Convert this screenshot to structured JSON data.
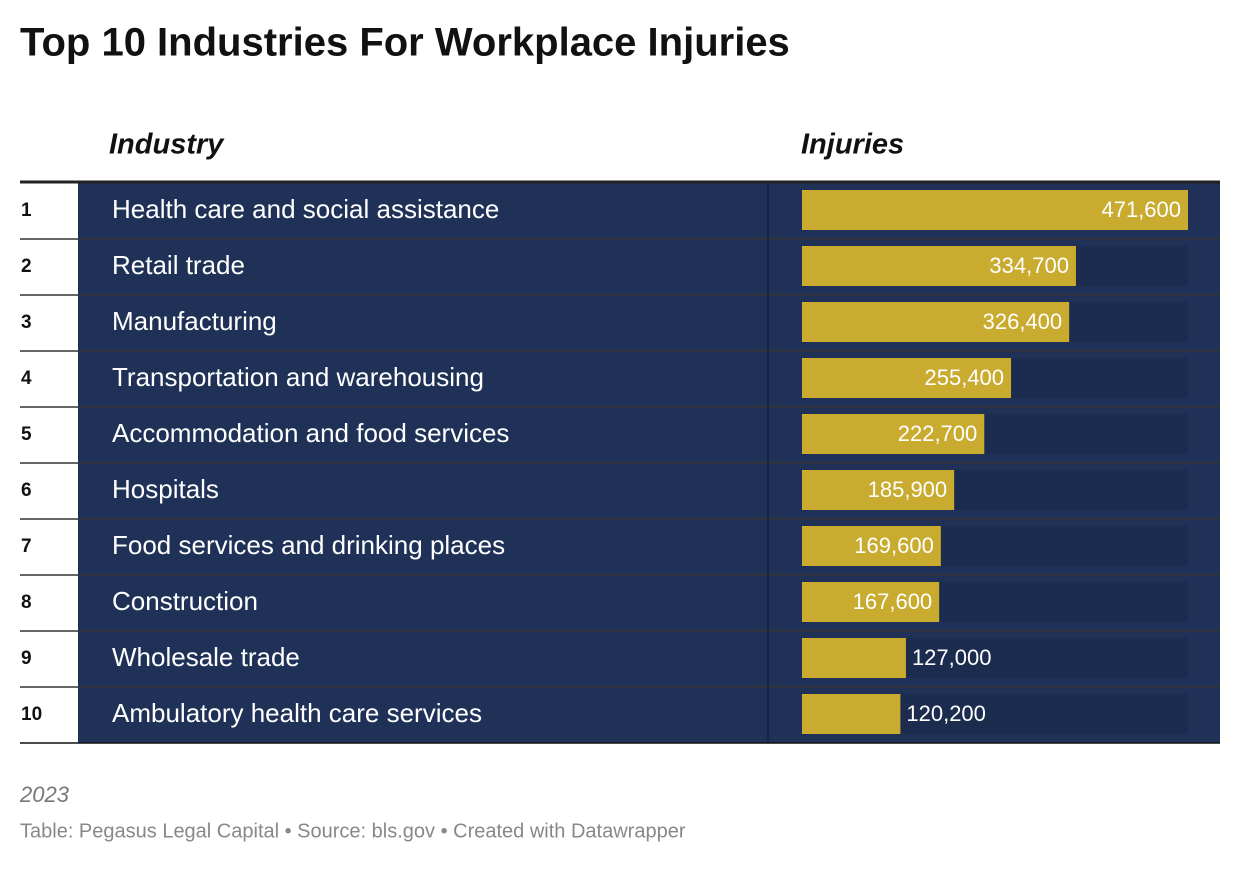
{
  "chart_data": {
    "type": "bar_table",
    "title": "Top 10 Industries For Workplace Injuries",
    "headers": [
      "Industry",
      "Injuries"
    ],
    "ranks": [
      1,
      2,
      3,
      4,
      5,
      6,
      7,
      8,
      9,
      10
    ],
    "categories": [
      "Health care and social assistance",
      "Retail trade",
      "Manufacturing",
      "Transportation and warehousing",
      "Accommodation and food services",
      "Hospitals",
      "Food services and drinking places",
      "Construction",
      "Wholesale trade",
      "Ambulatory health care services"
    ],
    "values": [
      471600,
      334700,
      326400,
      255400,
      222700,
      185900,
      169600,
      167600,
      127000,
      120200
    ],
    "value_labels": [
      "471,600",
      "334,700",
      "326,400",
      "255,400",
      "222,700",
      "185,900",
      "169,600",
      "167,600",
      "127,000",
      "120,200"
    ],
    "xlim": [
      0,
      471600
    ],
    "color": "#c8ab2f",
    "note": "2023",
    "footer": "Table: Pegasus Legal Capital • Source: bls.gov • Created with Datawrapper"
  }
}
